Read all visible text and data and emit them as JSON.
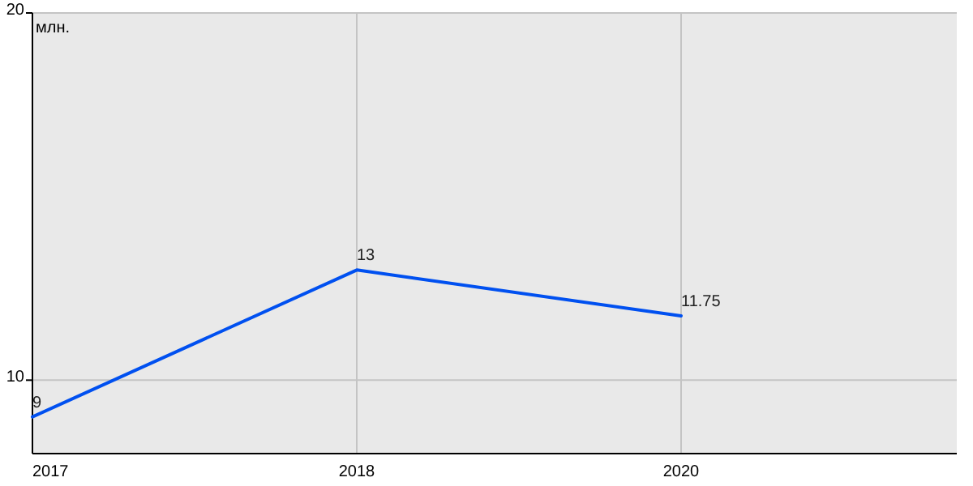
{
  "chart_data": {
    "type": "line",
    "ylabel": "млн.",
    "categories": [
      "2017",
      "2018",
      "2020"
    ],
    "series": [
      {
        "color": "#0050f0",
        "values": [
          9,
          13,
          11.75
        ]
      }
    ],
    "ylim": [
      8,
      20
    ],
    "yticks": [
      10,
      20
    ],
    "grid": true,
    "data_labels": true
  }
}
